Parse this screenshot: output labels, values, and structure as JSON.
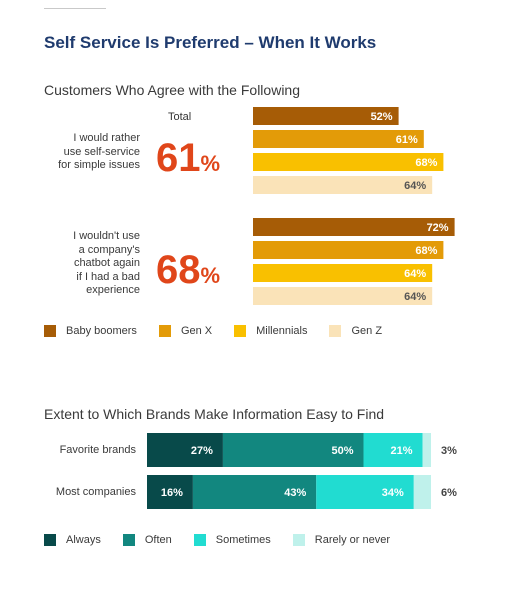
{
  "title": "Self Service Is Preferred – When It Works",
  "chart_data": [
    {
      "type": "bar",
      "orientation": "horizontal",
      "title": "Customers Who Agree with the Following",
      "total_label": "Total",
      "categories": [
        "I would rather use self-service for simple issues",
        "I wouldn't use a company's chatbot again if I had a bad experience"
      ],
      "category_lines": [
        [
          "I would rather",
          "use self-service",
          "for simple issues"
        ],
        [
          "I wouldn't use",
          "a company's",
          "chatbot again",
          "if I had a bad",
          "experience"
        ]
      ],
      "totals": [
        61,
        68
      ],
      "total_unit": "%",
      "series": [
        {
          "name": "Baby boomers",
          "color": "#a65c06",
          "values": [
            52,
            72
          ]
        },
        {
          "name": "Gen X",
          "color": "#e39b08",
          "values": [
            61,
            68
          ]
        },
        {
          "name": "Millennials",
          "color": "#f9c000",
          "values": [
            68,
            64
          ]
        },
        {
          "name": "Gen Z",
          "color": "#fae3b8",
          "values": [
            64,
            64
          ]
        }
      ],
      "xlim": [
        0,
        100
      ],
      "legend": "bottom"
    },
    {
      "type": "bar",
      "orientation": "horizontal",
      "stacked": true,
      "title": "Extent to Which Brands Make Information Easy to Find",
      "categories": [
        "Favorite brands",
        "Most companies"
      ],
      "series": [
        {
          "name": "Always",
          "color": "#084a4a",
          "values": [
            27,
            16
          ]
        },
        {
          "name": "Often",
          "color": "#12877f",
          "values": [
            50,
            43
          ]
        },
        {
          "name": "Sometimes",
          "color": "#21dcd1",
          "values": [
            21,
            34
          ]
        },
        {
          "name": "Rarely or never",
          "color": "#bff1eb",
          "values": [
            3,
            6
          ]
        }
      ],
      "xlim": [
        0,
        100
      ],
      "legend": "bottom"
    }
  ]
}
